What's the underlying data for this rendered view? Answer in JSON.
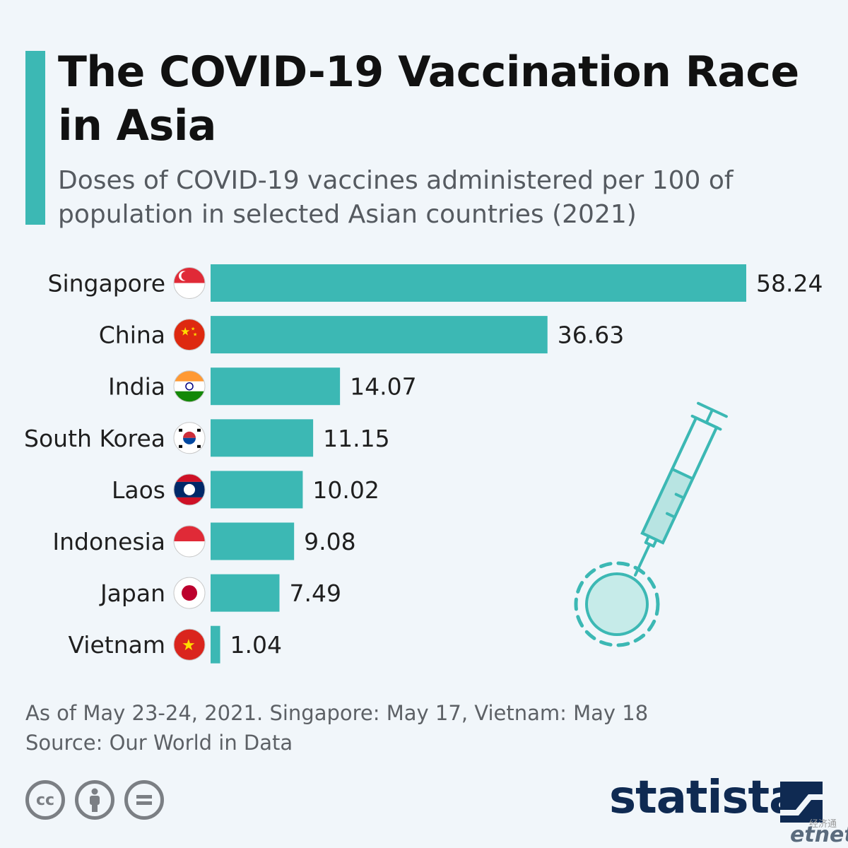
{
  "header": {
    "title": "The COVID-19 Vaccination Race in Asia",
    "subtitle": "Doses of COVID-19 vaccines administered per 100 of population in selected Asian countries (2021)"
  },
  "colors": {
    "accent": "#3cb8b4",
    "bar": "#3cb8b4",
    "brand": "#0f2a52",
    "text": "#1f1f1f"
  },
  "chart_data": {
    "type": "bar",
    "orientation": "horizontal",
    "title": "The COVID-19 Vaccination Race in Asia",
    "subtitle": "Doses of COVID-19 vaccines administered per 100 of population in selected Asian countries (2021)",
    "categories": [
      "Singapore",
      "China",
      "India",
      "South Korea",
      "Laos",
      "Indonesia",
      "Japan",
      "Vietnam"
    ],
    "values": [
      58.24,
      36.63,
      14.07,
      11.15,
      10.02,
      9.08,
      7.49,
      1.04
    ],
    "value_labels": [
      "58.24",
      "36.63",
      "14.07",
      "11.15",
      "10.02",
      "9.08",
      "7.49",
      "1.04"
    ],
    "xlim": [
      0,
      58.24
    ],
    "grid": false,
    "legend": "none",
    "flag_icons": [
      "singapore-flag-icon",
      "china-flag-icon",
      "india-flag-icon",
      "south-korea-flag-icon",
      "laos-flag-icon",
      "indonesia-flag-icon",
      "japan-flag-icon",
      "vietnam-flag-icon"
    ]
  },
  "footer": {
    "note": "As of May 23-24, 2021. Singapore: May 17, Vietnam: May 18",
    "source": "Source: Our World in Data",
    "brand": "statista",
    "license_icons": [
      "cc-icon",
      "attribution-icon",
      "no-derivatives-icon"
    ],
    "watermark_cn": "经济通",
    "watermark_en_a": "et",
    "watermark_en_b": "net"
  }
}
